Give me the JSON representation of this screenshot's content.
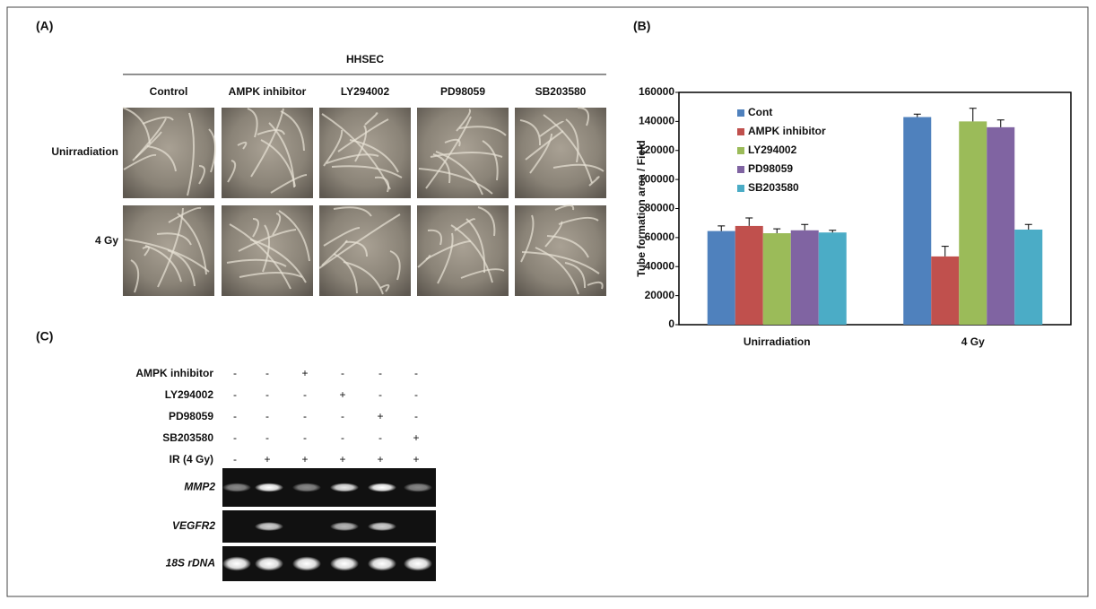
{
  "panel_labels": [
    "(A)",
    "(B)",
    "(C)"
  ],
  "panel_a": {
    "title": "HHSEC",
    "columns": [
      "Control",
      "AMPK inhibitor",
      "LY294002",
      "PD98059",
      "SB203580"
    ],
    "rows": [
      "Unirradiation",
      "4 Gy"
    ]
  },
  "chart_data": {
    "type": "bar",
    "ylabel": "Tube formation area / Field",
    "categories": [
      "Unirradiation",
      "4 Gy"
    ],
    "series": [
      {
        "name": "Cont",
        "color": "#4f81bd",
        "values": [
          64500,
          143000
        ],
        "errors": [
          3500,
          2000
        ]
      },
      {
        "name": "AMPK inhibitor",
        "color": "#c0504d",
        "values": [
          68000,
          47000
        ],
        "errors": [
          5500,
          7000
        ]
      },
      {
        "name": "LY294002",
        "color": "#9bbb59",
        "values": [
          63000,
          140000
        ],
        "errors": [
          3000,
          9000
        ]
      },
      {
        "name": "PD98059",
        "color": "#8064a2",
        "values": [
          65000,
          136000
        ],
        "errors": [
          4000,
          5000
        ]
      },
      {
        "name": "SB203580",
        "color": "#4bacc6",
        "values": [
          63500,
          65500
        ],
        "errors": [
          1500,
          3500
        ]
      }
    ],
    "ylim": [
      0,
      160000
    ],
    "yticks": [
      0,
      20000,
      40000,
      60000,
      80000,
      100000,
      120000,
      140000,
      160000
    ],
    "legend": "upper-left"
  },
  "panel_c": {
    "treatments": [
      {
        "label": "AMPK inhibitor",
        "signs": [
          "-",
          "-",
          "+",
          "-",
          "-",
          "-"
        ]
      },
      {
        "label": "LY294002",
        "signs": [
          "-",
          "-",
          "-",
          "+",
          "-",
          "-"
        ]
      },
      {
        "label": "PD98059",
        "signs": [
          "-",
          "-",
          "-",
          "-",
          "+",
          "-"
        ]
      },
      {
        "label": "SB203580",
        "signs": [
          "-",
          "-",
          "-",
          "-",
          "-",
          "+"
        ]
      },
      {
        "label": "IR (4 Gy)",
        "signs": [
          "-",
          "+",
          "+",
          "+",
          "+",
          "+"
        ]
      }
    ],
    "genes": [
      "MMP2",
      "VEGFR2",
      "18S rDNA"
    ]
  }
}
